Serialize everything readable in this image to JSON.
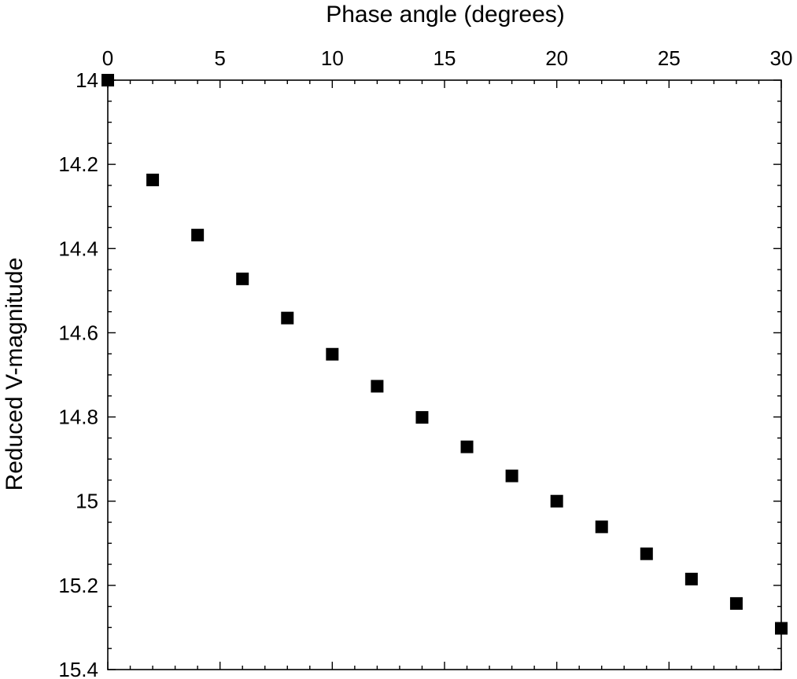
{
  "chart_data": {
    "type": "scatter",
    "title": "",
    "xlabel": "Phase angle (degrees)",
    "ylabel": "Reduced V-magnitude",
    "xlim": [
      0,
      30
    ],
    "ylim": [
      14,
      15.4
    ],
    "y_inverted": true,
    "x_axis_position": "top",
    "grid": false,
    "legend": "none",
    "x_ticks": [
      "0",
      "5",
      "10",
      "15",
      "20",
      "25",
      "30"
    ],
    "y_ticks": [
      "14",
      "14.2",
      "14.4",
      "14.6",
      "14.8",
      "15",
      "15.2",
      "15.4"
    ],
    "marker": "filled-square",
    "marker_color": "#000000",
    "series": [
      {
        "x": [
          0,
          2,
          4,
          6,
          8,
          10,
          12,
          14,
          16,
          18,
          20,
          22,
          24,
          26,
          28,
          30
        ],
        "y": [
          14.0,
          14.237,
          14.368,
          14.472,
          14.565,
          14.651,
          14.727,
          14.801,
          14.871,
          14.94,
          15.0,
          15.061,
          15.125,
          15.185,
          15.243,
          15.302
        ]
      }
    ]
  }
}
